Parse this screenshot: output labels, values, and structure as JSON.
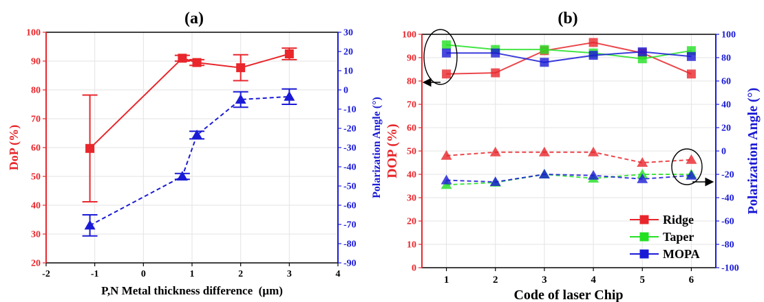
{
  "colors": {
    "red": "#e8262b",
    "green": "#22e022",
    "blue": "#1a1ad6",
    "grid": "#e3e3e3",
    "axis": "#000000"
  },
  "chart_data": [
    {
      "type": "line",
      "panel_label": "(a)",
      "xlabel": "P,N Metal thickness difference  (µm)",
      "ylabel_left": "DoP (%)",
      "ylabel_right": "Polarization Angle (°)",
      "xlim": [
        -2,
        4
      ],
      "ylim_left": [
        20,
        100
      ],
      "ylim_right": [
        -90,
        30
      ],
      "x_ticks": [
        "-2",
        "-1",
        "0",
        "1",
        "2",
        "3",
        "4"
      ],
      "y_left_ticks": [
        "20",
        "30",
        "40",
        "50",
        "60",
        "70",
        "80",
        "90",
        "100"
      ],
      "y_right_ticks": [
        "-90",
        "-80",
        "-70",
        "-60",
        "-50",
        "-40",
        "-30",
        "-20",
        "-10",
        "0",
        "10",
        "20",
        "30"
      ],
      "grid": true,
      "series": [
        {
          "axis": "left",
          "style": "solid",
          "marker": "square",
          "color": "red",
          "x": [
            -1.1,
            0.8,
            1.1,
            2.0,
            3.0
          ],
          "y": [
            59.7,
            91.0,
            89.5,
            87.7,
            92.5
          ],
          "err": [
            18.5,
            1.0,
            1.0,
            4.5,
            2.0
          ]
        },
        {
          "axis": "right",
          "style": "dashed",
          "marker": "triangle",
          "color": "blue",
          "x": [
            -1.1,
            0.8,
            1.1,
            2.0,
            3.0
          ],
          "y": [
            -70.5,
            -45.0,
            -23.5,
            -5.0,
            -3.5
          ],
          "err": [
            5.5,
            1.5,
            2.0,
            4.0,
            4.0
          ]
        }
      ]
    },
    {
      "type": "line",
      "panel_label": "(b)",
      "xlabel": "Code of laser Chip",
      "ylabel_left": "DOP (%)",
      "ylabel_right": "Polarization Angle (°)",
      "xlim": [
        0.5,
        6.5
      ],
      "ylim_left": [
        0,
        100
      ],
      "ylim_right": [
        -100,
        100
      ],
      "x_ticks": [
        "1",
        "2",
        "3",
        "4",
        "5",
        "6"
      ],
      "y_left_ticks": [
        "0",
        "10",
        "20",
        "30",
        "40",
        "50",
        "60",
        "70",
        "80",
        "90",
        "100"
      ],
      "y_right_ticks": [
        "-100",
        "-80",
        "-60",
        "-40",
        "-20",
        "0",
        "20",
        "40",
        "60",
        "80",
        "100"
      ],
      "grid": true,
      "legend": {
        "position": "bottom-right",
        "entries": [
          {
            "label": "Ridge",
            "color": "red"
          },
          {
            "label": "Taper",
            "color": "green"
          },
          {
            "label": "MOPA",
            "color": "blue"
          }
        ]
      },
      "series": [
        {
          "name": "Ridge",
          "axis": "left",
          "style": "solid",
          "marker": "square",
          "color": "red",
          "x": [
            1,
            2,
            3,
            4,
            5,
            6
          ],
          "y": [
            83.0,
            83.5,
            93.0,
            96.5,
            92.0,
            83.0
          ]
        },
        {
          "name": "Taper",
          "axis": "left",
          "style": "solid",
          "marker": "square",
          "color": "green",
          "x": [
            1,
            2,
            3,
            4,
            5,
            6
          ],
          "y": [
            95.5,
            93.5,
            93.5,
            92.0,
            89.5,
            93.0
          ]
        },
        {
          "name": "MOPA",
          "axis": "left",
          "style": "solid",
          "marker": "square",
          "color": "blue",
          "x": [
            1,
            2,
            3,
            4,
            5,
            6
          ],
          "y": [
            92.0,
            92.0,
            88.0,
            91.0,
            92.5,
            90.5
          ]
        },
        {
          "name": "Ridge",
          "axis": "right",
          "style": "dashed",
          "marker": "triangle",
          "color": "red",
          "x": [
            1,
            2,
            3,
            4,
            5,
            6
          ],
          "y": [
            -4.0,
            -1.0,
            -1.0,
            -1.0,
            -10.0,
            -7.5
          ]
        },
        {
          "name": "Taper",
          "axis": "right",
          "style": "dashed",
          "marker": "triangle",
          "color": "green",
          "x": [
            1,
            2,
            3,
            4,
            5,
            6
          ],
          "y": [
            -29.0,
            -27.0,
            -20.0,
            -23.5,
            -20.0,
            -20.0
          ]
        },
        {
          "name": "MOPA",
          "axis": "right",
          "style": "dashed",
          "marker": "triangle",
          "color": "blue",
          "x": [
            1,
            2,
            3,
            4,
            5,
            6
          ],
          "y": [
            -25.0,
            -26.5,
            -20.0,
            -21.0,
            -24.0,
            -21.0
          ]
        }
      ]
    }
  ]
}
